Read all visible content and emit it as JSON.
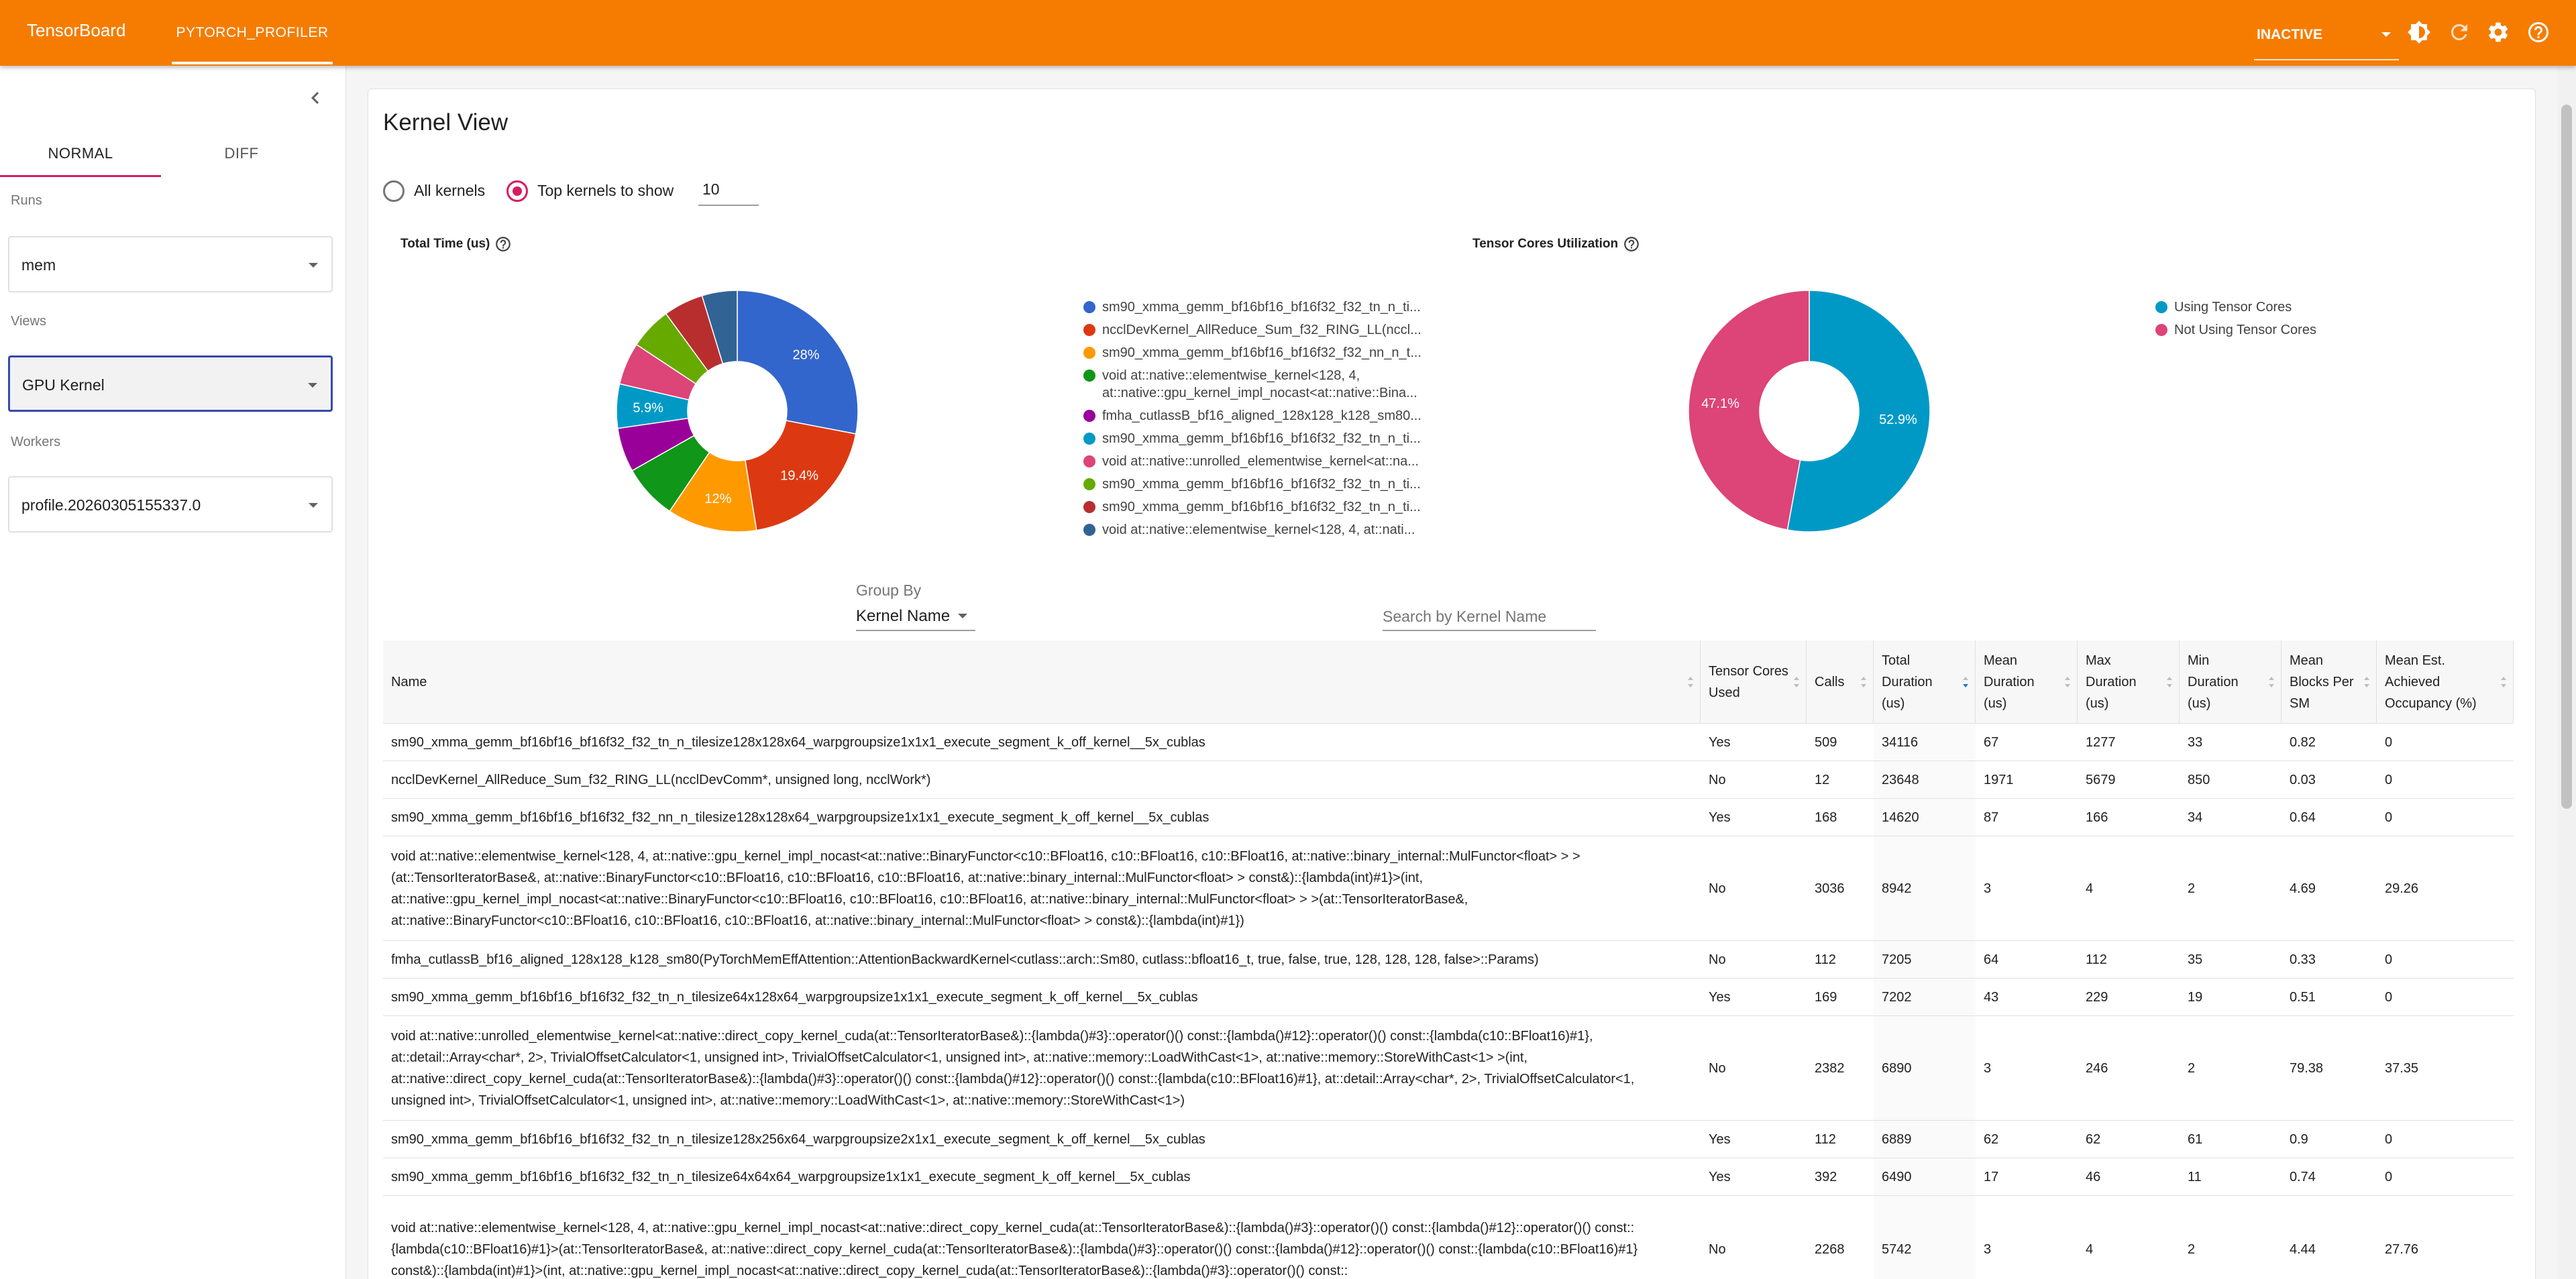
{
  "header": {
    "brand": "TensorBoard",
    "plugin_tab": "PYTORCH_PROFILER",
    "status_select": "INACTIVE",
    "icons": [
      "theme-toggle-icon",
      "refresh-icon",
      "settings-icon",
      "help-icon"
    ],
    "bg_color": "#f57c00"
  },
  "sidebar": {
    "tabs": [
      {
        "label": "NORMAL",
        "active": true
      },
      {
        "label": "DIFF",
        "active": false
      }
    ],
    "runs_label": "Runs",
    "runs_value": "mem",
    "views_label": "Views",
    "views_value": "GPU Kernel",
    "workers_label": "Workers",
    "workers_value": "profile.20260305155337.0"
  },
  "main": {
    "title": "Kernel View",
    "radio_all": "All kernels",
    "radio_top": "Top kernels to show",
    "top_k_value": "10",
    "group_by_label": "Group By",
    "group_by_value": "Kernel Name",
    "search_placeholder": "Search by Kernel Name"
  },
  "chart_data": [
    {
      "type": "pie",
      "title": "Total Time (us)",
      "categories": [
        "sm90_xmma_gemm_bf16bf16_bf16f32_f32_tn_n_ti...",
        "ncclDevKernel_AllReduce_Sum_f32_RING_LL(nccl...",
        "sm90_xmma_gemm_bf16bf16_bf16f32_f32_nn_n_t...",
        "void at::native::elementwise_kernel<128, 4, at::native::gpu_kernel_impl_nocast<at::native::Bina...",
        "fmha_cutlassB_bf16_aligned_128x128_k128_sm80...",
        "sm90_xmma_gemm_bf16bf16_bf16f32_f32_tn_n_ti...",
        "void at::native::unrolled_elementwise_kernel<at::na...",
        "sm90_xmma_gemm_bf16bf16_bf16f32_f32_tn_n_ti...",
        "sm90_xmma_gemm_bf16bf16_bf16f32_f32_tn_n_ti...",
        "void at::native::elementwise_kernel<128, 4, at::nati..."
      ],
      "values": [
        34116,
        23648,
        14620,
        8942,
        7205,
        7202,
        6890,
        6889,
        6490,
        5742
      ],
      "data_labels": [
        "28%",
        "19.4%",
        "12%",
        "",
        "",
        "5.9%",
        "",
        "",
        "",
        ""
      ],
      "colors": [
        "#3366cc",
        "#dc3912",
        "#ff9900",
        "#109618",
        "#990099",
        "#0099c6",
        "#dd4477",
        "#66aa00",
        "#b82e2e",
        "#316395"
      ],
      "legend": "right"
    },
    {
      "type": "pie",
      "title": "Tensor Cores Utilization",
      "categories": [
        "Using Tensor Cores",
        "Not Using Tensor Cores"
      ],
      "values": [
        52.9,
        47.1
      ],
      "data_labels": [
        "52.9%",
        "47.1%"
      ],
      "colors": [
        "#0099c6",
        "#dd4477"
      ],
      "legend": "right"
    },
    {
      "type": "table",
      "columns": [
        "Name",
        "Tensor Cores Used",
        "Calls",
        "Total Duration (us)",
        "Mean Duration (us)",
        "Max Duration (us)",
        "Min Duration (us)",
        "Mean Blocks Per SM",
        "Mean Est. Achieved Occupancy (%)"
      ],
      "rows": [
        [
          "sm90_xmma_gemm_bf16bf16_bf16f32_f32_tn_n_tilesize128x128x64_warpgroupsize1x1x1_execute_segment_k_off_kernel__5x_cublas",
          "Yes",
          "509",
          "34116",
          "67",
          "1277",
          "33",
          "0.82",
          "0"
        ],
        [
          "ncclDevKernel_AllReduce_Sum_f32_RING_LL(ncclDevComm*, unsigned long, ncclWork*)",
          "No",
          "12",
          "23648",
          "1971",
          "5679",
          "850",
          "0.03",
          "0"
        ],
        [
          "sm90_xmma_gemm_bf16bf16_bf16f32_f32_nn_n_tilesize128x128x64_warpgroupsize1x1x1_execute_segment_k_off_kernel__5x_cublas",
          "Yes",
          "168",
          "14620",
          "87",
          "166",
          "34",
          "0.64",
          "0"
        ],
        [
          "void at::native::elementwise_kernel<128, 4, at::native::gpu_kernel_impl_nocast<at::native::BinaryFunctor<c10::BFloat16, c10::BFloat16, c10::BFloat16, at::native::binary_internal::MulFunctor<float> > >(at::TensorIteratorBase&, at::native::BinaryFunctor<c10::BFloat16, c10::BFloat16, c10::BFloat16, at::native::binary_internal::MulFunctor<float> > const&)::{lambda(int)#1}>(int, at::native::gpu_kernel_impl_nocast<at::native::BinaryFunctor<c10::BFloat16, c10::BFloat16, c10::BFloat16, at::native::binary_internal::MulFunctor<float> > >(at::TensorIteratorBase&, at::native::BinaryFunctor<c10::BFloat16, c10::BFloat16, c10::BFloat16, at::native::binary_internal::MulFunctor<float> > const&)::{lambda(int)#1})",
          "No",
          "3036",
          "8942",
          "3",
          "4",
          "2",
          "4.69",
          "29.26"
        ],
        [
          "fmha_cutlassB_bf16_aligned_128x128_k128_sm80(PyTorchMemEffAttention::AttentionBackwardKernel<cutlass::arch::Sm80, cutlass::bfloat16_t, true, false, true, 128, 128, 128, false>::Params)",
          "No",
          "112",
          "7205",
          "64",
          "112",
          "35",
          "0.33",
          "0"
        ],
        [
          "sm90_xmma_gemm_bf16bf16_bf16f32_f32_tn_n_tilesize64x128x64_warpgroupsize1x1x1_execute_segment_k_off_kernel__5x_cublas",
          "Yes",
          "169",
          "7202",
          "43",
          "229",
          "19",
          "0.51",
          "0"
        ],
        [
          "void at::native::unrolled_elementwise_kernel<at::native::direct_copy_kernel_cuda(at::TensorIteratorBase&)::{lambda()#3}::operator()() const::{lambda()#12}::operator()() const::{lambda(c10::BFloat16)#1}, at::detail::Array<char*, 2>, TrivialOffsetCalculator<1, unsigned int>, TrivialOffsetCalculator<1, unsigned int>, at::native::memory::LoadWithCast<1>, at::native::memory::StoreWithCast<1> >(int, at::native::direct_copy_kernel_cuda(at::TensorIteratorBase&)::{lambda()#3}::operator()() const::{lambda()#12}::operator()() const::{lambda(c10::BFloat16)#1}, at::detail::Array<char*, 2>, TrivialOffsetCalculator<1, unsigned int>, TrivialOffsetCalculator<1, unsigned int>, at::native::memory::LoadWithCast<1>, at::native::memory::StoreWithCast<1>)",
          "No",
          "2382",
          "6890",
          "3",
          "246",
          "2",
          "79.38",
          "37.35"
        ],
        [
          "sm90_xmma_gemm_bf16bf16_bf16f32_f32_tn_n_tilesize128x256x64_warpgroupsize2x1x1_execute_segment_k_off_kernel__5x_cublas",
          "Yes",
          "112",
          "6889",
          "62",
          "62",
          "61",
          "0.9",
          "0"
        ],
        [
          "sm90_xmma_gemm_bf16bf16_bf16f32_f32_tn_n_tilesize64x64x64_warpgroupsize1x1x1_execute_segment_k_off_kernel__5x_cublas",
          "Yes",
          "392",
          "6490",
          "17",
          "46",
          "11",
          "0.74",
          "0"
        ],
        [
          "void at::native::elementwise_kernel<128, 4, at::native::gpu_kernel_impl_nocast<at::native::direct_copy_kernel_cuda(at::TensorIteratorBase&)::{lambda()#3}::operator()() const::{lambda()#12}::operator()() const::{lambda(c10::BFloat16)#1}>(at::TensorIteratorBase&, at::native::direct_copy_kernel_cuda(at::TensorIteratorBase&)::{lambda()#3}::operator()() const::{lambda()#12}::operator()() const::{lambda(c10::BFloat16)#1} const&)::{lambda(int)#1}>(int, at::native::gpu_kernel_impl_nocast<at::native::direct_copy_kernel_cuda(at::TensorIteratorBase&)::{lambda()#3}::operator()() const::",
          "No",
          "2268",
          "5742",
          "3",
          "4",
          "2",
          "4.44",
          "27.76"
        ]
      ],
      "sorted_column": "Total Duration (us)",
      "sort_direction": "desc"
    }
  ]
}
